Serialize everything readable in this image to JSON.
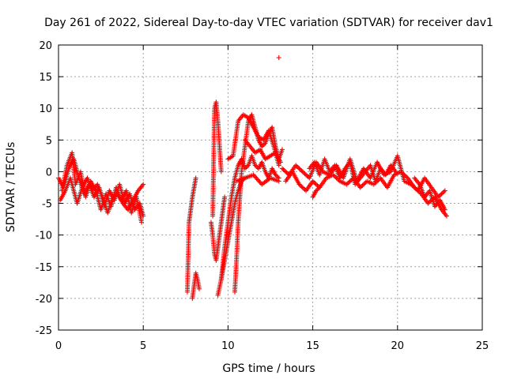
{
  "chart_data": {
    "type": "scatter",
    "title": "Day 261 of 2022, Sidereal Day-to-day VTEC variation (SDTVAR) for receiver dav1",
    "xlabel": "GPS time / hours",
    "ylabel": "SDTVAR / TECUs",
    "xlim": [
      0,
      25
    ],
    "ylim": [
      -25,
      20
    ],
    "xticks": [
      0,
      5,
      10,
      15,
      20,
      25
    ],
    "yticks": [
      -25,
      -20,
      -15,
      -10,
      -5,
      0,
      5,
      10,
      15,
      20
    ],
    "grid": true,
    "marker": "+",
    "color": "#ff0000",
    "series": [
      {
        "name": "SDTVAR",
        "tracks": [
          {
            "x": [
              0.0,
              0.3,
              0.6,
              0.9,
              1.2,
              1.5,
              1.8,
              2.1,
              2.4,
              2.7,
              3.0,
              3.3,
              3.6,
              3.9,
              4.2,
              4.5,
              4.8,
              5.0
            ],
            "y": [
              -1.0,
              -2.5,
              0.5,
              2.0,
              -1.0,
              -3.5,
              -2.0,
              -4.0,
              -2.5,
              -5.5,
              -3.0,
              -4.5,
              -2.0,
              -5.0,
              -3.5,
              -6.0,
              -5.0,
              -7.0
            ]
          },
          {
            "x": [
              0.2,
              0.5,
              0.8,
              1.0,
              1.3,
              1.6,
              1.9,
              2.2,
              2.5,
              2.8,
              3.1,
              3.4,
              3.7,
              4.0,
              4.3,
              4.6,
              4.9
            ],
            "y": [
              -3.0,
              1.0,
              3.0,
              -2.0,
              0.0,
              -4.0,
              -1.5,
              -3.0,
              -6.0,
              -3.5,
              -5.5,
              -2.5,
              -4.5,
              -3.0,
              -6.5,
              -4.0,
              -8.0
            ]
          },
          {
            "x": [
              0.1,
              0.4,
              0.7,
              1.1,
              1.4,
              1.7,
              2.0,
              2.3,
              2.6,
              2.9,
              3.2,
              3.5,
              3.8,
              4.1,
              4.4,
              4.7,
              5.0
            ],
            "y": [
              -4.5,
              -3.0,
              -1.0,
              -5.0,
              -2.5,
              -1.0,
              -3.0,
              -2.0,
              -4.0,
              -6.5,
              -4.0,
              -3.5,
              -5.0,
              -6.0,
              -4.5,
              -3.0,
              -2.0
            ]
          },
          {
            "x": [
              7.6,
              7.7,
              7.8,
              7.9,
              8.0,
              8.1
            ],
            "y": [
              -19.0,
              -8.0,
              -6.0,
              -4.0,
              -2.5,
              -1.0
            ]
          },
          {
            "x": [
              7.9,
              8.0,
              8.1,
              8.2,
              8.3
            ],
            "y": [
              -20.0,
              -18.0,
              -16.0,
              -17.0,
              -18.5
            ]
          },
          {
            "x": [
              9.0,
              9.1,
              9.2,
              9.3,
              9.4,
              9.5,
              9.6,
              9.7,
              9.8
            ],
            "y": [
              -8.0,
              -10.0,
              -13.0,
              -14.0,
              -12.0,
              -10.0,
              -8.0,
              -6.0,
              -4.0
            ]
          },
          {
            "x": [
              9.1,
              9.2,
              9.3,
              9.4,
              9.5,
              9.6
            ],
            "y": [
              -7.0,
              10.0,
              11.0,
              8.0,
              4.0,
              0.0
            ]
          },
          {
            "x": [
              9.4,
              9.6,
              9.8,
              10.0,
              10.2,
              10.4,
              10.6,
              10.8,
              11.0
            ],
            "y": [
              -19.5,
              -17.0,
              -14.0,
              -11.0,
              -8.0,
              -5.0,
              -3.0,
              -1.5,
              -1.0
            ]
          },
          {
            "x": [
              9.6,
              9.8,
              10.0,
              10.2,
              10.4,
              10.6,
              10.8,
              11.0,
              11.2,
              11.4,
              11.6,
              11.8,
              12.0,
              12.2,
              12.4,
              12.6,
              12.8,
              13.0
            ],
            "y": [
              -17.0,
              -12.0,
              -8.0,
              -4.0,
              -1.0,
              1.0,
              2.0,
              0.5,
              1.0,
              2.5,
              1.0,
              0.5,
              1.5,
              0.0,
              -1.0,
              0.5,
              -0.5,
              -1.0
            ]
          },
          {
            "x": [
              10.4,
              10.5,
              10.6,
              10.8,
              11.0,
              11.2,
              11.4,
              11.6,
              11.8,
              12.0,
              12.2,
              12.4,
              12.6,
              12.8,
              13.0,
              13.2
            ],
            "y": [
              -19.0,
              -14.0,
              -8.0,
              0.0,
              4.0,
              8.0,
              9.0,
              7.0,
              5.0,
              4.0,
              4.5,
              6.0,
              7.0,
              4.0,
              2.0,
              3.5
            ]
          },
          {
            "x": [
              10.0,
              10.3,
              10.6,
              10.9,
              11.2,
              11.5,
              11.8,
              12.1,
              12.4,
              12.7,
              13.0
            ],
            "y": [
              2.0,
              2.5,
              8.0,
              9.0,
              8.5,
              7.0,
              5.5,
              5.0,
              6.5,
              4.0,
              1.0
            ]
          },
          {
            "x": [
              11.0,
              11.3,
              11.6,
              11.9,
              12.2,
              12.5,
              12.8,
              13.1
            ],
            "y": [
              5.0,
              4.0,
              3.0,
              3.5,
              2.0,
              2.5,
              3.0,
              1.5
            ]
          },
          {
            "x": [
              10.5,
              11.0,
              11.5,
              12.0,
              12.5,
              13.0
            ],
            "y": [
              -1.5,
              -1.0,
              -0.5,
              -2.0,
              -1.0,
              -1.5
            ]
          },
          {
            "x": [
              13.0
            ],
            "y": [
              18.0
            ]
          },
          {
            "x": [
              13.2,
              13.6,
              14.0,
              14.4,
              14.8,
              15.2,
              15.6,
              16.0,
              16.4,
              16.8,
              17.2,
              17.6,
              18.0,
              18.4,
              18.8,
              19.2,
              19.6,
              20.0,
              20.4,
              20.8,
              21.2,
              21.6,
              22.0,
              22.4,
              22.8
            ],
            "y": [
              0.5,
              -0.5,
              1.0,
              0.0,
              -1.0,
              1.5,
              0.0,
              -0.5,
              1.0,
              -1.0,
              2.0,
              -1.5,
              0.5,
              -1.0,
              1.5,
              -0.5,
              0.0,
              2.5,
              -1.5,
              -2.0,
              -3.0,
              -1.0,
              -2.5,
              -4.0,
              -3.0
            ]
          },
          {
            "x": [
              13.4,
              13.8,
              14.2,
              14.6,
              15.0,
              15.4,
              15.8,
              16.2,
              16.6,
              17.0,
              17.4,
              17.8,
              18.2,
              18.6,
              19.0,
              19.4,
              19.8,
              20.2,
              20.6,
              21.0,
              21.4,
              21.8,
              22.2,
              22.6,
              22.9
            ],
            "y": [
              -1.5,
              0.0,
              -2.0,
              -3.0,
              -1.5,
              -2.5,
              -1.0,
              -0.5,
              -1.5,
              -2.0,
              -1.0,
              -2.5,
              -1.5,
              -2.0,
              -1.0,
              -2.5,
              -0.5,
              0.0,
              -1.0,
              -2.5,
              -3.5,
              -5.0,
              -4.0,
              -6.0,
              -7.0
            ]
          },
          {
            "x": [
              14.8,
              15.1,
              15.4,
              15.7,
              16.0,
              16.3,
              16.6,
              16.9,
              17.2,
              17.5,
              17.8,
              18.1,
              18.4,
              18.7,
              19.0,
              19.3,
              19.6,
              19.9
            ],
            "y": [
              0.5,
              1.5,
              -0.5,
              2.0,
              0.0,
              1.0,
              -1.0,
              0.5,
              1.5,
              -2.0,
              -1.0,
              0.0,
              1.0,
              -1.5,
              0.5,
              -0.5,
              1.0,
              0.0
            ]
          },
          {
            "x": [
              15.0,
              15.2,
              15.4
            ],
            "y": [
              -4.0,
              -3.0,
              -2.5
            ]
          },
          {
            "x": [
              21.0,
              21.3,
              21.6,
              21.9,
              22.2,
              22.5,
              22.8
            ],
            "y": [
              -1.0,
              -2.0,
              -4.0,
              -3.0,
              -5.5,
              -4.5,
              -6.0
            ]
          }
        ]
      }
    ]
  }
}
